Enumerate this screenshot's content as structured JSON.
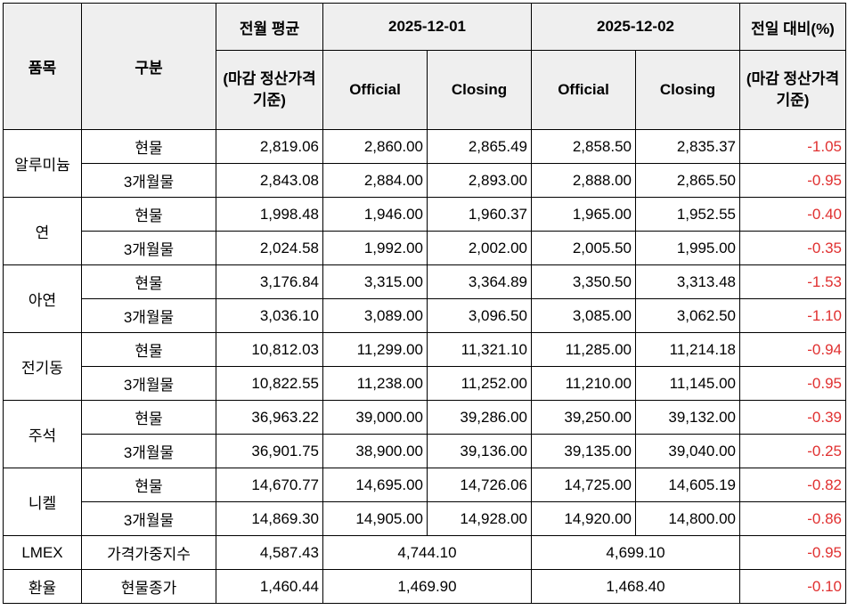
{
  "headers": {
    "item": "품목",
    "category": "구분",
    "prev_month_avg": "전월 평균",
    "prev_month_avg_sub": "(마감 정산가격 기준)",
    "date1": "2025-12-01",
    "date2": "2025-12-02",
    "change": "전일 대비(%)",
    "change_sub": "(마감 정산가격 기준)",
    "official": "Official",
    "closing": "Closing"
  },
  "colors": {
    "header_bg": "#efefef",
    "negative_text": "#e03030"
  },
  "rows": [
    {
      "item": "알루미늄",
      "category": "현물",
      "avg": "2,819.06",
      "d1_official": "2,860.00",
      "d1_closing": "2,865.49",
      "d2_official": "2,858.50",
      "d2_closing": "2,835.37",
      "change": "-1.05"
    },
    {
      "category": "3개월물",
      "avg": "2,843.08",
      "d1_official": "2,884.00",
      "d1_closing": "2,893.00",
      "d2_official": "2,888.00",
      "d2_closing": "2,865.50",
      "change": "-0.95"
    },
    {
      "item": "연",
      "category": "현물",
      "avg": "1,998.48",
      "d1_official": "1,946.00",
      "d1_closing": "1,960.37",
      "d2_official": "1,965.00",
      "d2_closing": "1,952.55",
      "change": "-0.40"
    },
    {
      "category": "3개월물",
      "avg": "2,024.58",
      "d1_official": "1,992.00",
      "d1_closing": "2,002.00",
      "d2_official": "2,005.50",
      "d2_closing": "1,995.00",
      "change": "-0.35"
    },
    {
      "item": "아연",
      "category": "현물",
      "avg": "3,176.84",
      "d1_official": "3,315.00",
      "d1_closing": "3,364.89",
      "d2_official": "3,350.50",
      "d2_closing": "3,313.48",
      "change": "-1.53"
    },
    {
      "category": "3개월물",
      "avg": "3,036.10",
      "d1_official": "3,089.00",
      "d1_closing": "3,096.50",
      "d2_official": "3,085.00",
      "d2_closing": "3,062.50",
      "change": "-1.10"
    },
    {
      "item": "전기동",
      "category": "현물",
      "avg": "10,812.03",
      "d1_official": "11,299.00",
      "d1_closing": "11,321.10",
      "d2_official": "11,285.00",
      "d2_closing": "11,214.18",
      "change": "-0.94"
    },
    {
      "category": "3개월물",
      "avg": "10,822.55",
      "d1_official": "11,238.00",
      "d1_closing": "11,252.00",
      "d2_official": "11,210.00",
      "d2_closing": "11,145.00",
      "change": "-0.95"
    },
    {
      "item": "주석",
      "category": "현물",
      "avg": "36,963.22",
      "d1_official": "39,000.00",
      "d1_closing": "39,286.00",
      "d2_official": "39,250.00",
      "d2_closing": "39,132.00",
      "change": "-0.39"
    },
    {
      "category": "3개월물",
      "avg": "36,901.75",
      "d1_official": "38,900.00",
      "d1_closing": "39,136.00",
      "d2_official": "39,135.00",
      "d2_closing": "39,040.00",
      "change": "-0.25"
    },
    {
      "item": "니켈",
      "category": "현물",
      "avg": "14,670.77",
      "d1_official": "14,695.00",
      "d1_closing": "14,726.06",
      "d2_official": "14,725.00",
      "d2_closing": "14,605.19",
      "change": "-0.82"
    },
    {
      "category": "3개월물",
      "avg": "14,869.30",
      "d1_official": "14,905.00",
      "d1_closing": "14,928.00",
      "d2_official": "14,920.00",
      "d2_closing": "14,800.00",
      "change": "-0.86"
    },
    {
      "item": "LMEX",
      "category": "가격가중지수",
      "avg": "4,587.43",
      "d1": "4,744.10",
      "d2": "4,699.10",
      "change": "-0.95"
    },
    {
      "item": "환율",
      "category": "현물종가",
      "avg": "1,460.44",
      "d1": "1,469.90",
      "d2": "1,468.40",
      "change": "-0.10"
    }
  ]
}
